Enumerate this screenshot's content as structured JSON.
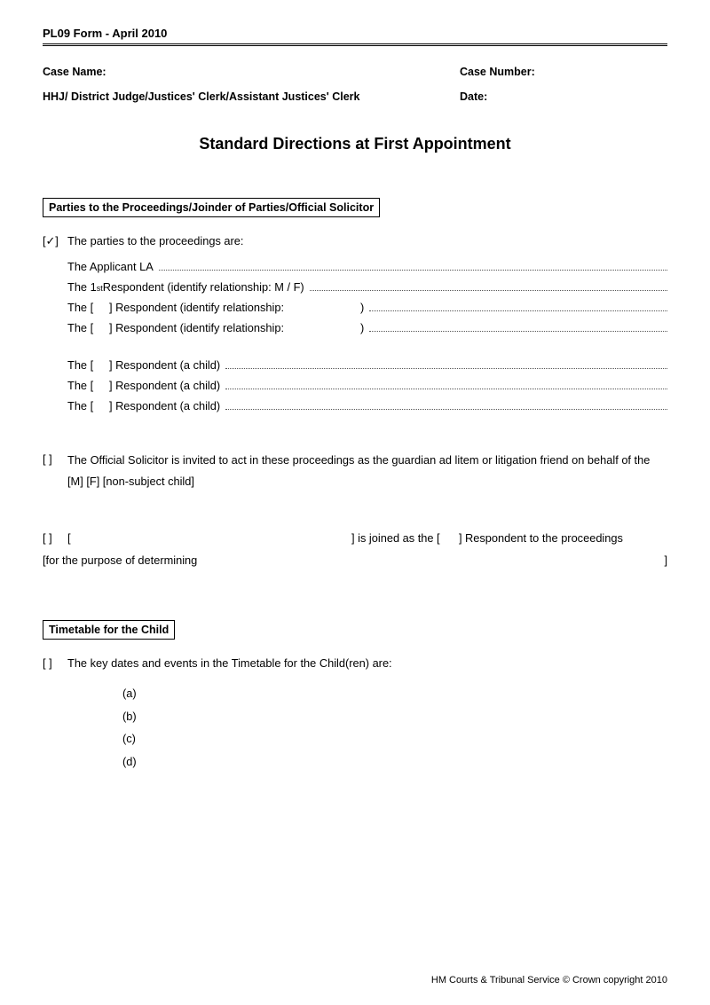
{
  "header": {
    "form_label": "PL09 Form - April 2010"
  },
  "meta": {
    "case_name_label": "Case Name:",
    "case_number_label": "Case Number:",
    "judge_label": "HHJ/ District Judge/Justices' Clerk/Assistant Justices' Clerk",
    "date_label": "Date:"
  },
  "title": "Standard Directions at First Appointment",
  "section1": {
    "heading": "Parties to the Proceedings/Joinder of Parties/Official Solicitor",
    "check_parties": "[✓]",
    "parties_intro": "The parties to the proceedings are:",
    "applicant_prefix": "The Applicant LA",
    "first_resp_prefix": "The 1",
    "first_resp_suffix": " Respondent (identify relationship: M / F)",
    "resp_blank_prefix": "The [",
    "resp_blank_mid": "] Respondent (identify relationship:",
    "resp_blank_paren": ")",
    "resp_child_prefix": "The [",
    "resp_child_suffix": "] Respondent (a child)",
    "check_blank": "[   ]",
    "official_solicitor": "The Official Solicitor is invited to act in these proceedings as the guardian ad litem or litigation friend on behalf of the [M] [F] [non-subject child]",
    "joined_left": "[",
    "joined_mid": "] is joined as the [",
    "joined_right": "] Respondent to the proceedings",
    "purpose": "[for the purpose of determining",
    "purpose_close": "]"
  },
  "section2": {
    "heading": "Timetable for the Child",
    "check_blank": "[   ]",
    "intro": "The key dates and events in the Timetable for the Child(ren) are:",
    "a": "(a)",
    "b": "(b)",
    "c": "(c)",
    "d": "(d)"
  },
  "footer": {
    "text": "HM Courts & Tribunal Service © Crown copyright 2010"
  }
}
